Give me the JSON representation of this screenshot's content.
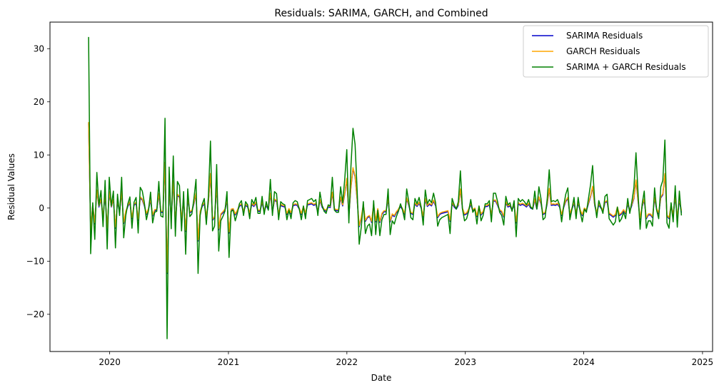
{
  "chart_data": {
    "type": "line",
    "title": "Residuals: SARIMA, GARCH, and Combined",
    "xlabel": "Date",
    "ylabel": "Residual Values",
    "xlim": [
      "2019-07-01",
      "2025-02-01"
    ],
    "ylim": [
      -27,
      35
    ],
    "x_ticks": [
      "2020",
      "2021",
      "2022",
      "2023",
      "2024",
      "2025"
    ],
    "y_ticks": [
      -20,
      -10,
      0,
      10,
      20,
      30
    ],
    "grid": false,
    "legend_position": "top-right",
    "x_start": "2019-10-28",
    "x_end": "2024-10-28",
    "series": [
      {
        "name": "SARIMA Residuals",
        "color": "#0000cc",
        "values": [
          16.0,
          -4.3,
          0.5,
          -3.0,
          3.3,
          0.2,
          1.6,
          -1.8,
          2.5,
          -4.0,
          2.9,
          0.2,
          1.6,
          -3.8,
          1.3,
          -0.8,
          2.9,
          -2.9,
          -0.8,
          0.3,
          1.0,
          -2.0,
          0.5,
          0.9,
          -2.3,
          1.9,
          1.5,
          0.4,
          -1.2,
          -0.3,
          1.5,
          -1.5,
          -0.5,
          -0.4,
          2.5,
          -0.8,
          -0.8,
          8.4,
          -12.3,
          3.8,
          -2.0,
          4.9,
          -2.7,
          2.4,
          2.0,
          -2.2,
          1.5,
          -4.4,
          1.7,
          -0.9,
          -0.6,
          0.8,
          2.6,
          -6.2,
          -0.8,
          0.3,
          0.8,
          -1.7,
          1.0,
          6.3,
          -2.3,
          -1.8,
          4.0,
          -4.1,
          -1.3,
          -0.9,
          -0.4,
          1.5,
          -4.7,
          -0.4,
          -0.3,
          -1.3,
          -0.6,
          0.3,
          0.6,
          -0.8,
          0.5,
          0.2,
          -1.1,
          0.7,
          0.3,
          0.9,
          -0.6,
          -0.6,
          1.0,
          -0.7,
          0.5,
          -0.3,
          2.6,
          -0.8,
          1.5,
          1.2,
          -1.2,
          0.5,
          0.3,
          0.2,
          -1.2,
          -0.3,
          -1.1,
          0.4,
          0.6,
          0.5,
          -0.2,
          -1.2,
          0.1,
          -1.1,
          0.6,
          0.7,
          0.8,
          0.5,
          0.7,
          -0.8,
          1.4,
          0.2,
          -0.4,
          -0.6,
          0.2,
          0.1,
          2.8,
          -0.3,
          -0.5,
          -0.5,
          1.9,
          0.4,
          2.6,
          5.4,
          -1.5,
          3.8,
          7.4,
          5.9,
          1.6,
          -3.5,
          -1.9,
          0.5,
          -2.5,
          -1.8,
          -1.6,
          -2.7,
          0.6,
          -2.6,
          -0.3,
          -2.7,
          -1.2,
          -0.7,
          -0.7,
          1.7,
          -2.6,
          -1.3,
          -1.6,
          -0.9,
          -0.4,
          0.3,
          -0.3,
          -1.2,
          1.7,
          0.5,
          -1.0,
          -1.2,
          0.8,
          0.3,
          0.9,
          0.0,
          -1.7,
          1.6,
          0.3,
          0.7,
          0.4,
          1.3,
          0.4,
          -1.8,
          -1.2,
          -1.0,
          -0.9,
          -0.8,
          -0.7,
          -2.5,
          0.8,
          0.2,
          -0.2,
          0.5,
          3.4,
          -0.2,
          -1.3,
          -1.1,
          -0.4,
          0.7,
          -0.5,
          -0.2,
          -1.6,
          0.1,
          -1.3,
          -0.8,
          0.3,
          0.3,
          0.6,
          -1.4,
          1.3,
          1.3,
          0.5,
          -0.5,
          -0.8,
          -1.7,
          1.0,
          0.2,
          0.4,
          -0.4,
          0.6,
          -2.8,
          0.8,
          0.5,
          0.7,
          0.5,
          0.2,
          0.7,
          0.0,
          -0.2,
          1.5,
          -0.2,
          1.9,
          0.8,
          -1.2,
          -1.0,
          0.7,
          3.5,
          0.5,
          0.6,
          0.5,
          0.7,
          0.2,
          -1.4,
          0.1,
          1.2,
          1.8,
          -1.2,
          -0.2,
          0.9,
          -1.1,
          0.9,
          -0.5,
          -1.4,
          -0.2,
          -0.5,
          0.8,
          2.1,
          3.9,
          0.5,
          -1.0,
          0.6,
          0.0,
          -0.6,
          1.0,
          1.2,
          -1.1,
          -1.4,
          -1.7,
          -1.4,
          0.0,
          -1.4,
          -1.1,
          -0.5,
          -1.1,
          0.8,
          -0.6,
          0.5,
          1.8,
          5.1,
          1.3,
          -2.1,
          0.3,
          1.5,
          -2.0,
          -1.3,
          -1.3,
          -1.8,
          1.8,
          -0.3,
          -1.1,
          1.9,
          2.5,
          6.3,
          -1.5,
          -2.0,
          0.4,
          -1.4,
          2.0,
          -1.9,
          1.5,
          -0.9
        ]
      },
      {
        "name": "GARCH Residuals",
        "color": "#ffa500",
        "values": [
          16.2,
          -4.2,
          0.6,
          -2.8,
          3.4,
          0.4,
          1.7,
          -1.6,
          2.7,
          -3.8,
          3.1,
          0.3,
          1.7,
          -3.6,
          1.5,
          -0.6,
          3.1,
          -2.7,
          -0.6,
          0.5,
          1.2,
          -1.8,
          0.7,
          1.1,
          -2.1,
          2.1,
          1.7,
          0.6,
          -1.0,
          -0.1,
          1.7,
          -1.3,
          -0.3,
          -0.2,
          2.7,
          -0.6,
          -0.6,
          8.6,
          -12.1,
          4.0,
          -1.8,
          5.1,
          -2.5,
          2.6,
          2.2,
          -2.0,
          1.7,
          -4.2,
          1.9,
          -0.7,
          -0.4,
          1.0,
          2.8,
          -6.0,
          -0.6,
          0.5,
          1.0,
          -1.5,
          1.2,
          6.5,
          -2.1,
          -1.6,
          4.2,
          -3.9,
          -1.1,
          -0.7,
          -0.2,
          1.7,
          -4.5,
          -0.2,
          -0.1,
          -1.1,
          -0.4,
          0.5,
          0.8,
          -0.6,
          0.7,
          0.4,
          -0.9,
          0.9,
          0.5,
          1.1,
          -0.4,
          -0.4,
          1.2,
          -0.5,
          0.7,
          -0.1,
          2.8,
          -0.6,
          1.7,
          1.4,
          -1.0,
          0.7,
          0.5,
          0.4,
          -1.0,
          -0.1,
          -0.9,
          0.6,
          0.8,
          0.7,
          0.0,
          -1.0,
          0.3,
          -0.9,
          0.8,
          0.9,
          1.0,
          0.7,
          0.9,
          -0.6,
          1.6,
          0.4,
          -0.2,
          -0.4,
          0.4,
          0.3,
          3.0,
          -0.1,
          -0.3,
          -0.3,
          2.1,
          0.6,
          2.8,
          5.6,
          -1.3,
          4.0,
          7.6,
          6.1,
          1.8,
          -3.3,
          -1.7,
          0.7,
          -2.3,
          -1.6,
          -1.4,
          -2.5,
          0.8,
          -2.4,
          -0.1,
          -2.5,
          -1.0,
          -0.5,
          -0.5,
          1.9,
          -2.4,
          -1.1,
          -1.4,
          -0.7,
          -0.2,
          0.5,
          -0.1,
          -1.0,
          1.9,
          0.7,
          -0.8,
          -1.0,
          1.0,
          0.5,
          1.1,
          0.2,
          -1.5,
          1.8,
          0.5,
          0.9,
          0.6,
          1.5,
          0.6,
          -1.6,
          -1.0,
          -0.8,
          -0.7,
          -0.6,
          -0.5,
          -2.3,
          1.0,
          0.4,
          0.0,
          0.7,
          3.6,
          0.0,
          -1.1,
          -0.9,
          -0.2,
          0.9,
          -0.3,
          0.0,
          -1.4,
          0.3,
          -1.1,
          -0.6,
          0.5,
          0.5,
          0.8,
          -1.2,
          1.5,
          1.5,
          0.7,
          -0.3,
          -0.6,
          -1.5,
          1.2,
          0.4,
          0.6,
          -0.2,
          0.8,
          -2.6,
          1.0,
          0.7,
          0.9,
          0.7,
          0.4,
          0.9,
          0.2,
          0.0,
          1.7,
          0.0,
          2.1,
          1.0,
          -1.0,
          -0.8,
          0.9,
          3.7,
          0.7,
          0.8,
          0.7,
          0.9,
          0.4,
          -1.2,
          0.3,
          1.4,
          2.0,
          -1.0,
          0.0,
          1.1,
          -0.9,
          1.1,
          -0.3,
          -1.2,
          0.0,
          -0.3,
          1.0,
          2.3,
          4.1,
          0.7,
          -0.8,
          0.8,
          0.2,
          -0.4,
          1.2,
          1.4,
          -0.9,
          -1.2,
          -1.5,
          -1.2,
          0.2,
          -1.2,
          -0.9,
          -0.3,
          -0.9,
          1.0,
          -0.4,
          0.7,
          2.0,
          5.3,
          1.5,
          -1.9,
          0.5,
          1.7,
          -1.8,
          -1.1,
          -1.1,
          -1.6,
          2.0,
          -0.1,
          -0.9,
          2.1,
          2.7,
          6.5,
          -1.3,
          -1.8,
          0.6,
          -1.2,
          2.2,
          -1.7,
          1.7,
          -0.5
        ]
      },
      {
        "name": "SARIMA + GARCH Residuals",
        "color": "#008000",
        "values": [
          32.2,
          -8.6,
          1.0,
          -5.9,
          6.7,
          0.5,
          3.3,
          -3.5,
          5.2,
          -7.7,
          5.8,
          0.4,
          3.2,
          -7.5,
          2.6,
          -1.4,
          5.8,
          -5.6,
          -1.4,
          0.8,
          2.1,
          -3.8,
          1.1,
          2.0,
          -4.7,
          3.9,
          3.2,
          1.0,
          -2.2,
          -0.4,
          3.0,
          -2.8,
          -0.8,
          -0.6,
          5.0,
          -1.5,
          -1.7,
          16.9,
          -24.6,
          7.7,
          -3.9,
          9.8,
          -5.3,
          5.0,
          4.2,
          -4.3,
          3.1,
          -8.7,
          3.6,
          -1.6,
          -1.1,
          1.8,
          5.4,
          -12.3,
          -1.4,
          0.7,
          1.8,
          -3.1,
          2.2,
          12.6,
          -4.3,
          -3.4,
          8.2,
          -8.1,
          -2.4,
          -1.6,
          -0.6,
          3.1,
          -9.3,
          -0.6,
          -0.4,
          -2.4,
          -1.0,
          0.8,
          1.4,
          -1.4,
          1.2,
          0.6,
          -2.0,
          1.6,
          0.8,
          2.0,
          -1.0,
          -1.0,
          2.2,
          -1.2,
          1.2,
          -0.4,
          5.4,
          -1.4,
          3.1,
          2.7,
          -2.2,
          1.2,
          0.8,
          0.6,
          -2.2,
          -0.4,
          -2.0,
          1.0,
          1.4,
          1.2,
          -0.2,
          -2.2,
          0.4,
          -2.0,
          1.4,
          1.6,
          1.8,
          1.2,
          1.6,
          -1.4,
          3.0,
          0.6,
          -0.6,
          -1.0,
          0.6,
          0.4,
          5.8,
          -0.4,
          -0.8,
          -0.8,
          4.0,
          1.0,
          5.4,
          11.0,
          -2.8,
          7.8,
          15.0,
          12.0,
          3.4,
          -6.8,
          -3.6,
          1.2,
          -4.8,
          -3.4,
          -3.0,
          -5.2,
          1.4,
          -5.0,
          -0.4,
          -5.2,
          -2.2,
          -1.2,
          -1.2,
          3.6,
          -5.0,
          -2.4,
          -3.0,
          -1.6,
          -0.6,
          0.8,
          -0.4,
          -2.2,
          3.6,
          1.2,
          -1.8,
          -2.2,
          1.8,
          0.8,
          2.0,
          0.2,
          -3.2,
          3.4,
          0.8,
          1.6,
          1.0,
          2.8,
          1.0,
          -3.4,
          -2.2,
          -1.8,
          -1.6,
          -1.4,
          -1.2,
          -4.8,
          1.8,
          0.6,
          -0.2,
          1.2,
          7.0,
          -0.2,
          -2.4,
          -2.0,
          -0.6,
          1.6,
          -0.8,
          -0.2,
          -3.0,
          0.4,
          -2.4,
          -1.4,
          0.8,
          0.8,
          1.4,
          -2.6,
          2.8,
          2.8,
          1.2,
          -0.8,
          -1.4,
          -3.2,
          2.2,
          0.6,
          1.0,
          -0.6,
          1.4,
          -5.4,
          1.8,
          1.2,
          1.6,
          1.2,
          0.6,
          1.6,
          0.2,
          -0.2,
          3.2,
          -0.2,
          4.0,
          1.8,
          -2.2,
          -1.8,
          1.6,
          7.2,
          1.2,
          1.4,
          1.2,
          1.6,
          0.6,
          -2.6,
          0.4,
          2.6,
          3.8,
          -2.2,
          -0.2,
          2.0,
          -2.0,
          2.0,
          -0.8,
          -2.6,
          -0.2,
          -0.8,
          1.8,
          4.4,
          8.0,
          1.2,
          -1.8,
          1.4,
          0.2,
          -1.0,
          2.2,
          2.6,
          -2.0,
          -2.6,
          -3.2,
          -2.6,
          0.2,
          -2.6,
          -2.0,
          -0.8,
          -2.0,
          1.8,
          -1.0,
          1.2,
          3.8,
          10.4,
          2.8,
          -4.0,
          0.8,
          3.2,
          -3.8,
          -2.4,
          -2.4,
          -3.4,
          3.8,
          -0.4,
          -2.0,
          4.0,
          5.2,
          12.8,
          -2.8,
          -3.8,
          1.0,
          -2.6,
          4.2,
          -3.6,
          3.2,
          -1.4
        ]
      }
    ]
  }
}
